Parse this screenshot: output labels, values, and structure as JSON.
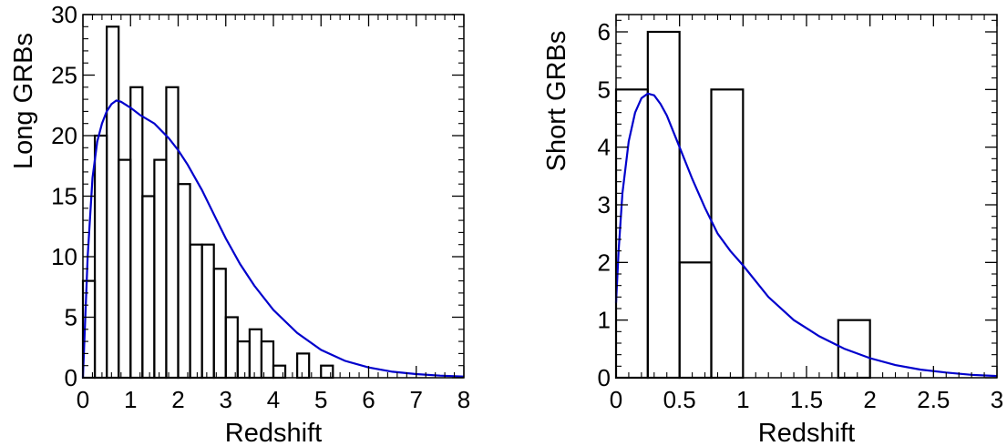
{
  "chart_data": [
    {
      "type": "histogram",
      "xlabel": "Redshift",
      "ylabel": "Long GRBs",
      "xlim": [
        0,
        8
      ],
      "ylim": [
        0,
        30
      ],
      "xticks": [
        0,
        1,
        2,
        3,
        4,
        5,
        6,
        7,
        8
      ],
      "xtick_labels": [
        "0",
        "1",
        "2",
        "3",
        "4",
        "5",
        "6",
        "7",
        "8"
      ],
      "yticks": [
        0,
        5,
        10,
        15,
        20,
        25,
        30
      ],
      "ytick_labels": [
        "0",
        "5",
        "10",
        "15",
        "20",
        "25",
        "30"
      ],
      "bin_edges": [
        0,
        0.25,
        0.5,
        0.75,
        1.0,
        1.25,
        1.5,
        1.75,
        2.0,
        2.25,
        2.5,
        2.75,
        3.0,
        3.25,
        3.5,
        3.75,
        4.0,
        4.25,
        4.5,
        4.75,
        5.0,
        5.25,
        5.5,
        5.75,
        6.0,
        6.25,
        6.5,
        6.75,
        7.0,
        7.25,
        7.5,
        7.75,
        8.0
      ],
      "counts": [
        8,
        20,
        29,
        18,
        24,
        15,
        18,
        24,
        16,
        11,
        11,
        9,
        5,
        3,
        4,
        3,
        1,
        0,
        2,
        0,
        1,
        0,
        0,
        0,
        0,
        0,
        0,
        0,
        0,
        0,
        0,
        0
      ],
      "fit_curve": {
        "color": "#0000cc",
        "x": [
          0,
          0.05,
          0.1,
          0.2,
          0.3,
          0.4,
          0.5,
          0.6,
          0.7,
          0.8,
          1.0,
          1.2,
          1.5,
          1.8,
          2.0,
          2.2,
          2.5,
          2.8,
          3.0,
          3.3,
          3.6,
          4.0,
          4.5,
          5.0,
          5.5,
          6.0,
          6.5,
          7.0,
          7.5,
          8.0
        ],
        "y": [
          0,
          5,
          10,
          16.5,
          19.5,
          21,
          22,
          22.6,
          22.9,
          22.8,
          22.3,
          21.7,
          21.0,
          19.8,
          18.8,
          17.6,
          15.5,
          13.1,
          11.5,
          9.4,
          7.6,
          5.6,
          3.7,
          2.3,
          1.4,
          0.85,
          0.5,
          0.3,
          0.17,
          0.1
        ]
      },
      "grid": false,
      "legend": false
    },
    {
      "type": "histogram",
      "xlabel": "Redshift",
      "ylabel": "Short GRBs",
      "xlim": [
        0,
        3
      ],
      "ylim": [
        0,
        6.3
      ],
      "xticks": [
        0,
        0.5,
        1,
        1.5,
        2,
        2.5,
        3
      ],
      "xtick_labels": [
        "0",
        "0.5",
        "1",
        "1.5",
        "2",
        "2.5",
        "3"
      ],
      "yticks": [
        0,
        1,
        2,
        3,
        4,
        5,
        6
      ],
      "ytick_labels": [
        "0",
        "1",
        "2",
        "3",
        "4",
        "5",
        "6"
      ],
      "bin_edges": [
        0,
        0.25,
        0.5,
        0.75,
        1.0,
        1.25,
        1.5,
        1.75,
        2.0,
        2.25,
        2.5,
        2.75,
        3.0
      ],
      "counts": [
        5,
        6,
        2,
        5,
        0,
        0,
        0,
        1,
        0,
        0,
        0,
        0
      ],
      "fit_curve": {
        "color": "#0000cc",
        "x": [
          0,
          0.02,
          0.05,
          0.1,
          0.15,
          0.2,
          0.25,
          0.3,
          0.35,
          0.4,
          0.5,
          0.6,
          0.7,
          0.8,
          0.9,
          1.0,
          1.2,
          1.4,
          1.6,
          1.8,
          2.0,
          2.2,
          2.4,
          2.6,
          2.8,
          3.0
        ],
        "y": [
          1.3,
          2.2,
          3.2,
          4.1,
          4.6,
          4.85,
          4.93,
          4.9,
          4.75,
          4.55,
          4.0,
          3.45,
          2.95,
          2.5,
          2.2,
          1.95,
          1.4,
          1.0,
          0.72,
          0.5,
          0.34,
          0.22,
          0.14,
          0.09,
          0.05,
          0.03
        ]
      },
      "grid": false,
      "legend": false
    }
  ]
}
